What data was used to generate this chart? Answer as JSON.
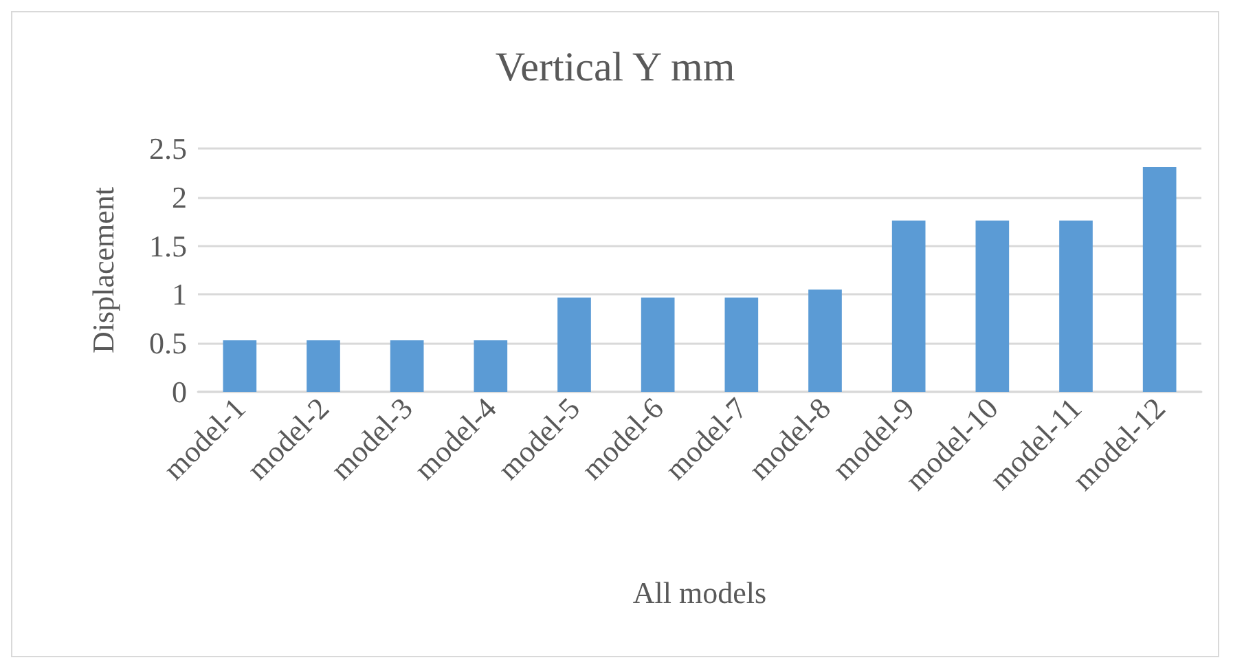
{
  "chart_data": {
    "type": "bar",
    "title": "Vertical Y mm",
    "xlabel": "All models",
    "ylabel": "Displacement",
    "categories": [
      "model-1",
      "model-2",
      "model-3",
      "model-4",
      "model-5",
      "model-6",
      "model-7",
      "model-8",
      "model-9",
      "model-10",
      "model-11",
      "model-12"
    ],
    "values": [
      0.53,
      0.53,
      0.53,
      0.53,
      0.97,
      0.97,
      0.97,
      1.05,
      1.76,
      1.76,
      1.76,
      2.31
    ],
    "color": "#5b9bd5",
    "ylim": [
      0,
      2.5
    ],
    "yticks": [
      0,
      0.5,
      1,
      1.5,
      2,
      2.5
    ],
    "grid": "y"
  }
}
